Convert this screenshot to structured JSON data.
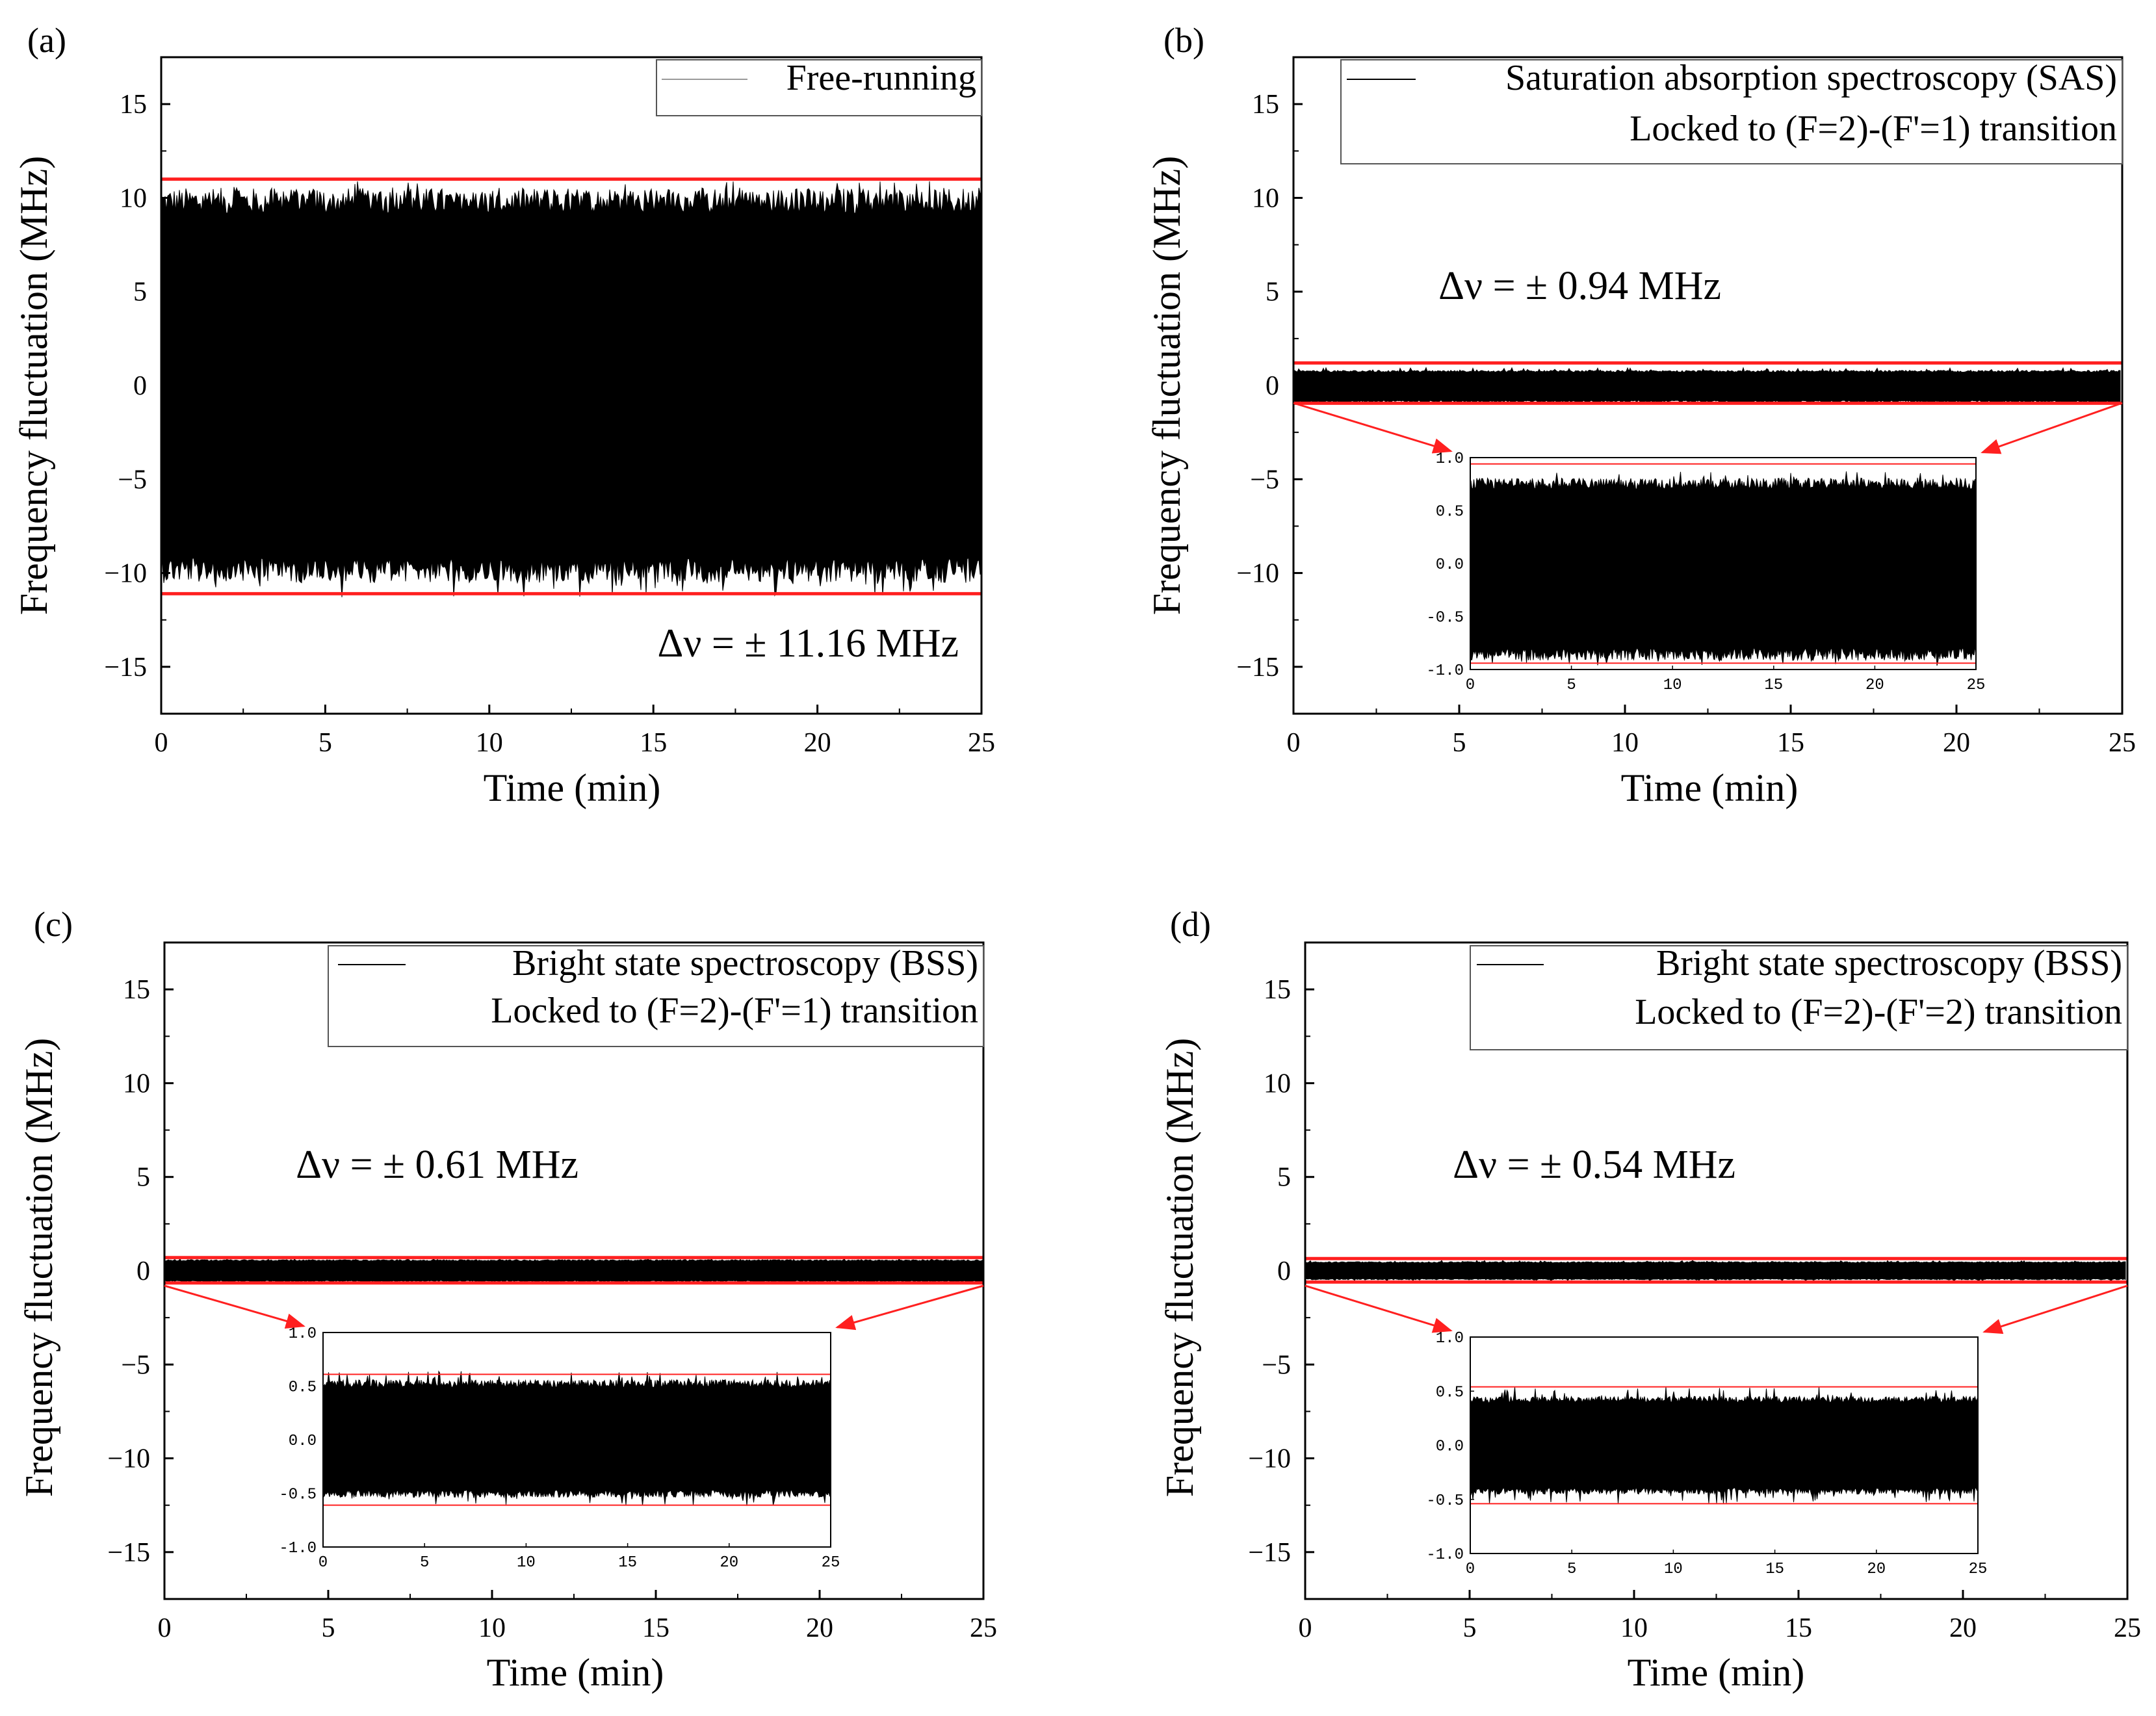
{
  "colors": {
    "trace": "#000000",
    "bound": "#ff2020",
    "axis": "#000000",
    "legend_border": "#555555",
    "background": "#ffffff"
  },
  "chart_data": [
    {
      "type": "line",
      "panel": "(a)",
      "xlabel": "Time (min)",
      "ylabel": "Frequency fluctuation (MHz)",
      "xlim": [
        0,
        25
      ],
      "ylim": [
        -17.5,
        17.5
      ],
      "xticks": [
        0,
        5,
        10,
        15,
        20,
        25
      ],
      "yticks": [
        15,
        10,
        5,
        0,
        -5,
        -10,
        -15
      ],
      "xticklabels": [
        "0",
        "5",
        "10",
        "15",
        "20",
        "25"
      ],
      "yticklabels": [
        "15",
        "10",
        "5",
        "0",
        "−5",
        "−10",
        "−15"
      ],
      "legend": [
        "Free-running"
      ],
      "legend_position": "top-right",
      "annotation": "Δν = ± 11.16 MHz",
      "envelope": {
        "upper": 9.8,
        "lower": -9.8,
        "peak_upper": 10.9,
        "peak_lower": -11.3
      },
      "bounds": [
        11.0,
        -11.1
      ],
      "grid": false,
      "inset": null
    },
    {
      "type": "line",
      "panel": "(b)",
      "xlabel": "Time (min)",
      "ylabel": "Frequency fluctuation (MHz)",
      "xlim": [
        0,
        25
      ],
      "ylim": [
        -17.5,
        17.5
      ],
      "xticks": [
        0,
        5,
        10,
        15,
        20,
        25
      ],
      "yticks": [
        15,
        10,
        5,
        0,
        -5,
        -10,
        -15
      ],
      "xticklabels": [
        "0",
        "5",
        "10",
        "15",
        "20",
        "25"
      ],
      "yticklabels": [
        "15",
        "10",
        "5",
        "0",
        "−5",
        "−10",
        "−15"
      ],
      "legend": [
        "Saturation absorption spectroscopy (SAS)",
        "Locked to (F=2)-(F'=1) transition"
      ],
      "legend_position": "top-right",
      "annotation": "Δν = ± 0.94 MHz",
      "envelope": {
        "upper": 0.75,
        "lower": -0.85,
        "peak_upper": 0.95,
        "peak_lower": -0.95
      },
      "bounds": [
        1.2,
        -0.95
      ],
      "grid": false,
      "inset": {
        "xlim": [
          0,
          25
        ],
        "ylim": [
          -1.0,
          1.0
        ],
        "xticklabels": [
          "0",
          "5",
          "10",
          "15",
          "20",
          "25"
        ],
        "yticklabels": [
          "1.0",
          "0.5",
          "0.0",
          "-0.5",
          "-1.0"
        ],
        "envelope": {
          "upper": 0.75,
          "lower": -0.85
        },
        "bounds": [
          0.94,
          -0.94
        ]
      }
    },
    {
      "type": "line",
      "panel": "(c)",
      "xlabel": "Time (min)",
      "ylabel": "Frequency fluctuation (MHz)",
      "xlim": [
        0,
        25
      ],
      "ylim": [
        -17.5,
        17.5
      ],
      "xticks": [
        0,
        5,
        10,
        15,
        20,
        25
      ],
      "yticks": [
        15,
        10,
        5,
        0,
        -5,
        -10,
        -15
      ],
      "xticklabels": [
        "0",
        "5",
        "10",
        "15",
        "20",
        "25"
      ],
      "yticklabels": [
        "15",
        "10",
        "5",
        "0",
        "−5",
        "−10",
        "−15"
      ],
      "legend": [
        "Bright state spectroscopy (BSS)",
        "Locked to (F=2)-(F'=1) transition"
      ],
      "legend_position": "top-right",
      "annotation": "Δν = ± 0.61 MHz",
      "envelope": {
        "upper": 0.55,
        "lower": -0.55,
        "peak_upper": 0.62,
        "peak_lower": -0.62
      },
      "bounds": [
        0.7,
        -0.65
      ],
      "grid": false,
      "inset": {
        "xlim": [
          0,
          25
        ],
        "ylim": [
          -1.0,
          1.0
        ],
        "xticklabels": [
          "0",
          "5",
          "10",
          "15",
          "20",
          "25"
        ],
        "yticklabels": [
          "1.0",
          "0.5",
          "0.0",
          "-0.5",
          "-1.0"
        ],
        "envelope": {
          "upper": 0.52,
          "lower": -0.5
        },
        "bounds": [
          0.61,
          -0.61
        ]
      }
    },
    {
      "type": "line",
      "panel": "(d)",
      "xlabel": "Time (min)",
      "ylabel": "Frequency fluctuation (MHz)",
      "xlim": [
        0,
        25
      ],
      "ylim": [
        -17.5,
        17.5
      ],
      "xticks": [
        0,
        5,
        10,
        15,
        20,
        25
      ],
      "yticks": [
        15,
        10,
        5,
        0,
        -5,
        -10,
        -15
      ],
      "xticklabels": [
        "0",
        "5",
        "10",
        "15",
        "20",
        "25"
      ],
      "yticklabels": [
        "15",
        "10",
        "5",
        "0",
        "−5",
        "−10",
        "−15"
      ],
      "legend": [
        "Bright state spectroscopy (BSS)",
        "Locked to (F=2)-(F'=2) transition"
      ],
      "legend_position": "top-right",
      "annotation": "Δν = ± 0.54 MHz",
      "envelope": {
        "upper": 0.45,
        "lower": -0.45,
        "peak_upper": 0.55,
        "peak_lower": -0.55
      },
      "bounds": [
        0.65,
        -0.6
      ],
      "grid": false,
      "inset": {
        "xlim": [
          0,
          25
        ],
        "ylim": [
          -1.0,
          1.0
        ],
        "xticklabels": [
          "0",
          "5",
          "10",
          "15",
          "20",
          "25"
        ],
        "yticklabels": [
          "1.0",
          "0.5",
          "0.0",
          "-0.5",
          "-1.0"
        ],
        "envelope": {
          "upper": 0.42,
          "lower": -0.42
        },
        "bounds": [
          0.54,
          -0.54
        ]
      }
    }
  ]
}
